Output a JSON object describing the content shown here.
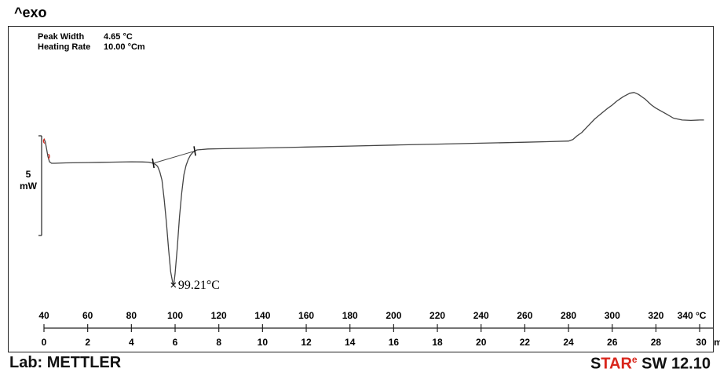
{
  "header": {
    "exo_label": "^exo"
  },
  "info": {
    "peak_width_label": "Peak Width",
    "peak_width_value": "4.65 °C",
    "heating_rate_label": "Heating Rate",
    "heating_rate_value": "10.00 °Cm"
  },
  "scale_bar": {
    "value": "5",
    "unit": "mW"
  },
  "footer": {
    "lab": "Lab: METTLER",
    "star_s": "S",
    "star_tar": "TAR",
    "star_e": "e",
    "star_rest": " SW 12.10"
  },
  "colors": {
    "curve": "#444444",
    "marker_red": "#d9261c",
    "axis": "#222222"
  },
  "chart_data": {
    "type": "line",
    "title": "",
    "xlabel": "°C",
    "x2label": "min",
    "xlim": [
      40,
      345
    ],
    "x_ticks": [
      40,
      60,
      80,
      100,
      120,
      140,
      160,
      180,
      200,
      220,
      240,
      260,
      280,
      300,
      320,
      340
    ],
    "x_tick_labels": [
      "40",
      "60",
      "80",
      "100",
      "120",
      "140",
      "160",
      "180",
      "200",
      "220",
      "240",
      "260",
      "280",
      "300",
      "320",
      "340 °C"
    ],
    "time_ticks": [
      0,
      2,
      4,
      6,
      8,
      10,
      12,
      14,
      16,
      18,
      20,
      22,
      24,
      26,
      28,
      30
    ],
    "time_tick_labels": [
      "0",
      "2",
      "4",
      "6",
      "8",
      "10",
      "12",
      "14",
      "16",
      "18",
      "20",
      "22",
      "24",
      "26",
      "28",
      "30"
    ],
    "time_unit": "min",
    "ylabel": "mW",
    "ylim": [
      -18,
      10.5
    ],
    "y_unit_note": "relative heat flow, exo up",
    "series": [
      {
        "x": [
          40,
          40.6,
          41.2,
          41.8,
          42.5,
          43.5,
          45,
          50,
          60,
          70,
          80,
          85,
          88,
          90,
          91,
          92,
          93,
          94,
          95,
          96,
          97,
          98,
          99,
          99.21,
          99.5,
          100,
          101,
          102,
          103,
          104,
          105,
          106,
          107,
          108,
          109,
          110,
          115,
          120,
          140,
          160,
          180,
          200,
          220,
          240,
          260,
          270,
          280,
          282,
          284,
          286,
          288,
          290,
          292,
          295,
          298,
          300,
          302,
          305,
          308,
          310,
          312,
          315,
          318,
          320,
          325,
          328,
          332,
          336,
          340,
          342
        ],
        "y": [
          1.6,
          1.2,
          0.3,
          -0.7,
          -1.4,
          -1.6,
          -1.6,
          -1.55,
          -1.5,
          -1.45,
          -1.4,
          -1.42,
          -1.45,
          -1.6,
          -1.75,
          -2.0,
          -2.7,
          -3.8,
          -6.3,
          -9.3,
          -12.8,
          -15.8,
          -17.3,
          -17.5,
          -17.2,
          -16.0,
          -12.6,
          -8.6,
          -5.5,
          -3.1,
          -1.9,
          -1.1,
          -0.55,
          -0.2,
          0.0,
          0.15,
          0.27,
          0.3,
          0.4,
          0.52,
          0.65,
          0.78,
          0.9,
          1.03,
          1.15,
          1.22,
          1.3,
          1.5,
          2.0,
          2.4,
          3.0,
          3.6,
          4.2,
          4.9,
          5.6,
          6.0,
          6.5,
          7.1,
          7.55,
          7.65,
          7.4,
          6.8,
          6.0,
          5.6,
          4.8,
          4.3,
          4.05,
          4.0,
          4.05,
          4.05
        ]
      }
    ],
    "annotations": [
      {
        "text": "99.21°C",
        "x": 99.21,
        "y": -17.5,
        "marker": "x"
      }
    ],
    "grid": false,
    "scale_bar_mw": 5
  }
}
